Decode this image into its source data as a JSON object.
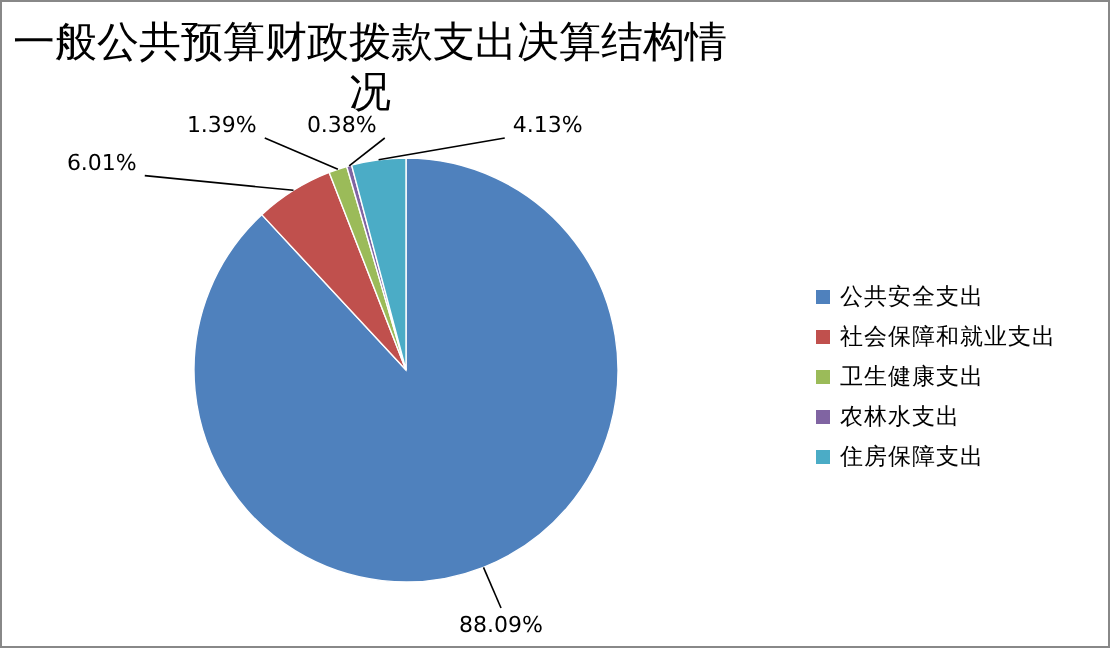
{
  "chart_data": {
    "type": "pie",
    "title": "一般公共预算财政拨款支出决算结构情况",
    "categories": [
      "公共安全支出",
      "社会保障和就业支出",
      "卫生健康支出",
      "农林水支出",
      "住房保障支出"
    ],
    "values": [
      88.09,
      6.01,
      1.39,
      0.38,
      4.13
    ],
    "colors": [
      "#4f81bd",
      "#c0504d",
      "#9bbb59",
      "#8064a2",
      "#4bacc6"
    ],
    "value_labels": [
      "88.09%",
      "6.01%",
      "1.39%",
      "0.38%",
      "4.13%"
    ],
    "legend": "right"
  }
}
